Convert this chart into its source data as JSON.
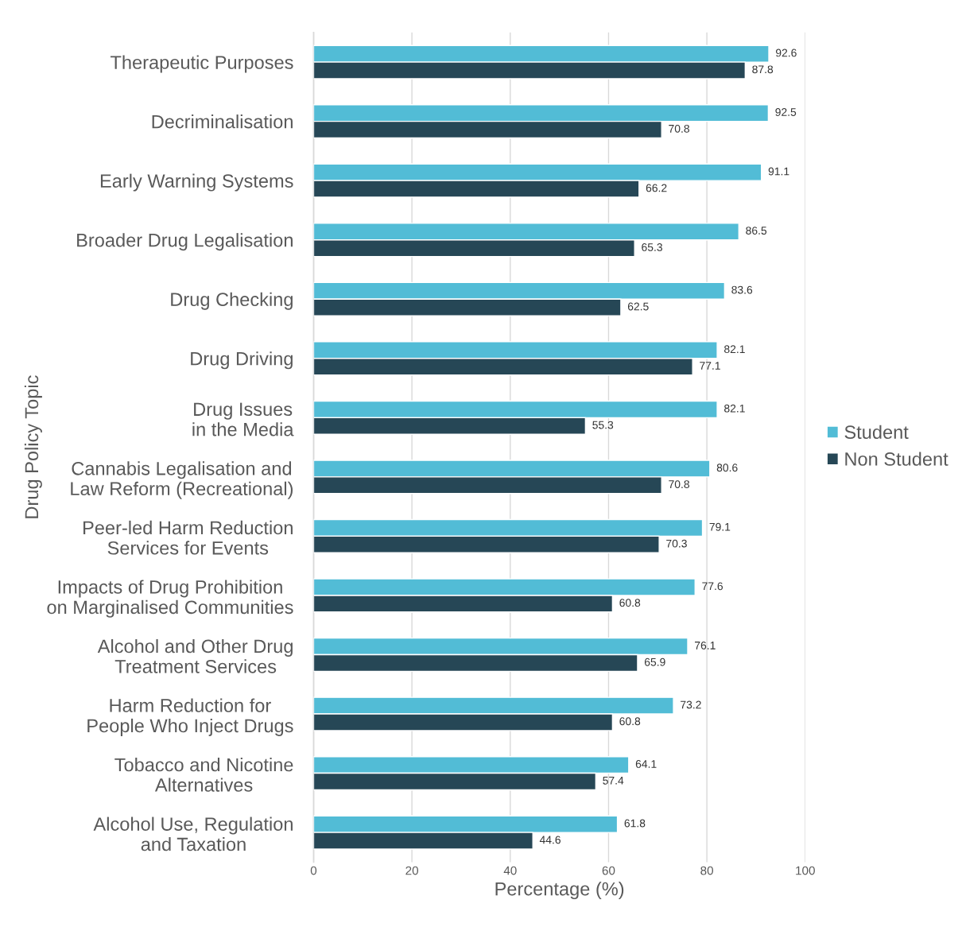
{
  "chart_data": {
    "type": "bar",
    "orientation": "horizontal",
    "xlabel": "Percentage (%)",
    "ylabel": "Drug Policy Topic",
    "categories": [
      "Therapeutic Purposes",
      "Decriminalisation",
      "Early Warning Systems",
      "Broader Drug Legalisation",
      "Drug Checking",
      "Drug Driving",
      "Drug Issues\nin the Media",
      "Cannabis Legalisation and\nLaw Reform (Recreational)",
      "Peer-led Harm Reduction\nServices for Events",
      "Impacts of Drug Prohibition\non Marginalised Communities",
      "Alcohol and Other Drug\nTreatment Services",
      "Harm Reduction for\nPeople Who Inject Drugs",
      "Tobacco and Nicotine\nAlternatives",
      "Alcohol Use, Regulation\nand Taxation"
    ],
    "series": [
      {
        "name": "Student",
        "color": "#52bcd6",
        "values": [
          92.6,
          92.5,
          91.1,
          86.5,
          83.6,
          82.1,
          82.1,
          80.6,
          79.1,
          77.6,
          76.1,
          73.2,
          64.1,
          61.8
        ]
      },
      {
        "name": "Non Student",
        "color": "#264756",
        "values": [
          87.8,
          70.8,
          66.2,
          65.3,
          62.5,
          77.1,
          55.3,
          70.8,
          70.3,
          60.8,
          65.9,
          60.8,
          57.4,
          44.6
        ]
      }
    ],
    "xlim": [
      0,
      100
    ],
    "xticks": [
      0,
      20,
      40,
      60,
      80,
      100
    ],
    "grid": "x",
    "legend": "right",
    "data_labels": true
  }
}
